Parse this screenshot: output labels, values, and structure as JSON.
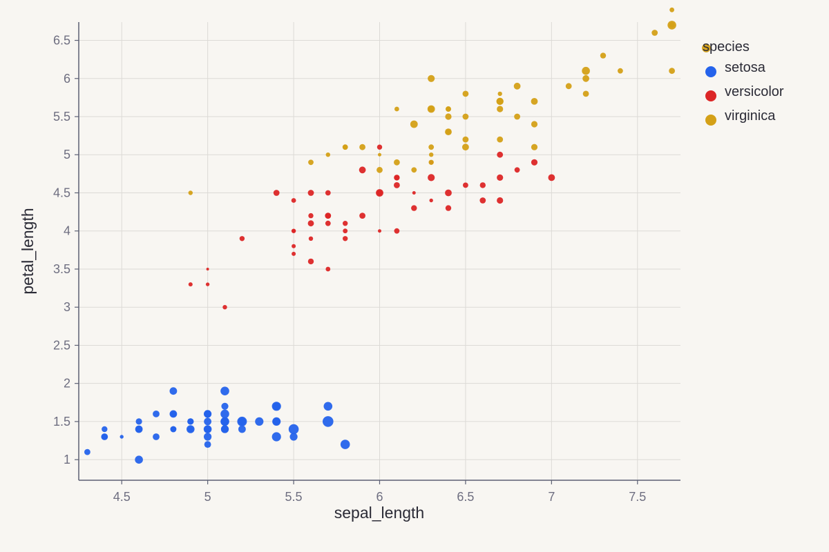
{
  "chart_data": {
    "type": "scatter",
    "title": "",
    "xlabel": "sepal_length",
    "ylabel": "petal_length",
    "xlim": [
      4.25,
      7.75
    ],
    "ylim": [
      0.73,
      6.74
    ],
    "xticks": [
      "4.5",
      "5",
      "5.5",
      "6",
      "6.5",
      "7",
      "7.5"
    ],
    "yticks": [
      "1",
      "1.5",
      "2",
      "2.5",
      "3",
      "3.5",
      "4",
      "4.5",
      "5",
      "5.5",
      "6",
      "6.5"
    ],
    "grid": true,
    "legend": {
      "title": "species",
      "position": "right"
    },
    "size_encoding": "sepal_width",
    "series": [
      {
        "name": "setosa",
        "color": "#2563eb",
        "points": [
          [
            5.1,
            1.4,
            3.5
          ],
          [
            4.9,
            1.4,
            3.0
          ],
          [
            4.7,
            1.3,
            3.2
          ],
          [
            4.6,
            1.5,
            3.1
          ],
          [
            5.0,
            1.4,
            3.6
          ],
          [
            5.4,
            1.7,
            3.9
          ],
          [
            4.6,
            1.4,
            3.4
          ],
          [
            5.0,
            1.5,
            3.4
          ],
          [
            4.4,
            1.4,
            2.9
          ],
          [
            4.9,
            1.5,
            3.1
          ],
          [
            5.4,
            1.5,
            3.7
          ],
          [
            4.8,
            1.6,
            3.4
          ],
          [
            4.8,
            1.4,
            3.0
          ],
          [
            4.3,
            1.1,
            3.0
          ],
          [
            5.8,
            1.2,
            4.0
          ],
          [
            5.7,
            1.5,
            4.4
          ],
          [
            5.4,
            1.3,
            3.9
          ],
          [
            5.1,
            1.4,
            3.5
          ],
          [
            5.7,
            1.7,
            3.8
          ],
          [
            5.1,
            1.5,
            3.8
          ],
          [
            5.4,
            1.7,
            3.4
          ],
          [
            5.1,
            1.5,
            3.7
          ],
          [
            4.6,
            1.0,
            3.6
          ],
          [
            5.1,
            1.7,
            3.3
          ],
          [
            4.8,
            1.9,
            3.4
          ],
          [
            5.0,
            1.6,
            3.0
          ],
          [
            5.0,
            1.6,
            3.4
          ],
          [
            5.2,
            1.5,
            3.5
          ],
          [
            5.2,
            1.4,
            3.4
          ],
          [
            4.7,
            1.6,
            3.2
          ],
          [
            4.8,
            1.6,
            3.1
          ],
          [
            5.4,
            1.5,
            3.4
          ],
          [
            5.2,
            1.5,
            4.1
          ],
          [
            5.5,
            1.4,
            4.2
          ],
          [
            4.9,
            1.5,
            3.1
          ],
          [
            5.0,
            1.2,
            3.2
          ],
          [
            5.5,
            1.3,
            3.5
          ],
          [
            4.9,
            1.4,
            3.6
          ],
          [
            4.4,
            1.3,
            3.0
          ],
          [
            5.1,
            1.5,
            3.4
          ],
          [
            5.0,
            1.3,
            3.5
          ],
          [
            4.5,
            1.3,
            2.3
          ],
          [
            4.4,
            1.3,
            3.2
          ],
          [
            5.0,
            1.6,
            3.5
          ],
          [
            5.1,
            1.9,
            3.8
          ],
          [
            4.8,
            1.4,
            3.0
          ],
          [
            5.1,
            1.6,
            3.8
          ],
          [
            4.6,
            1.4,
            3.2
          ],
          [
            5.3,
            1.5,
            3.7
          ],
          [
            5.0,
            1.4,
            3.3
          ]
        ]
      },
      {
        "name": "versicolor",
        "color": "#dc2626",
        "points": [
          [
            7.0,
            4.7,
            3.2
          ],
          [
            6.4,
            4.5,
            3.2
          ],
          [
            6.9,
            4.9,
            3.1
          ],
          [
            5.5,
            4.0,
            2.3
          ],
          [
            6.5,
            4.6,
            2.8
          ],
          [
            5.7,
            4.5,
            2.8
          ],
          [
            6.3,
            4.7,
            3.3
          ],
          [
            4.9,
            3.3,
            2.4
          ],
          [
            6.6,
            4.6,
            2.9
          ],
          [
            5.2,
            3.9,
            2.7
          ],
          [
            5.0,
            3.5,
            2.0
          ],
          [
            5.9,
            4.2,
            3.0
          ],
          [
            6.0,
            4.0,
            2.2
          ],
          [
            6.1,
            4.7,
            2.9
          ],
          [
            5.6,
            3.6,
            2.9
          ],
          [
            6.7,
            4.4,
            3.1
          ],
          [
            5.6,
            4.5,
            3.0
          ],
          [
            5.8,
            4.1,
            2.7
          ],
          [
            6.2,
            4.5,
            2.2
          ],
          [
            5.6,
            3.9,
            2.5
          ],
          [
            5.9,
            4.8,
            3.2
          ],
          [
            6.1,
            4.0,
            2.8
          ],
          [
            6.3,
            4.9,
            2.5
          ],
          [
            6.1,
            4.7,
            2.8
          ],
          [
            6.4,
            4.3,
            2.9
          ],
          [
            6.6,
            4.4,
            3.0
          ],
          [
            6.8,
            4.8,
            2.8
          ],
          [
            6.7,
            5.0,
            3.0
          ],
          [
            6.0,
            4.5,
            2.9
          ],
          [
            5.7,
            3.5,
            2.6
          ],
          [
            5.5,
            3.8,
            2.4
          ],
          [
            5.5,
            3.7,
            2.4
          ],
          [
            5.8,
            3.9,
            2.7
          ],
          [
            6.0,
            5.1,
            2.7
          ],
          [
            5.4,
            4.5,
            3.0
          ],
          [
            6.0,
            4.5,
            3.4
          ],
          [
            6.7,
            4.7,
            3.1
          ],
          [
            6.3,
            4.4,
            2.3
          ],
          [
            5.6,
            4.1,
            3.0
          ],
          [
            5.5,
            4.0,
            2.5
          ],
          [
            5.5,
            4.4,
            2.6
          ],
          [
            6.1,
            4.6,
            3.0
          ],
          [
            5.8,
            4.0,
            2.6
          ],
          [
            5.0,
            3.3,
            2.3
          ],
          [
            5.6,
            4.2,
            2.7
          ],
          [
            5.7,
            4.2,
            3.0
          ],
          [
            5.7,
            4.2,
            2.9
          ],
          [
            6.2,
            4.3,
            2.9
          ],
          [
            5.1,
            3.0,
            2.5
          ],
          [
            5.7,
            4.1,
            2.8
          ]
        ]
      },
      {
        "name": "virginica",
        "color": "#d4a017",
        "points": [
          [
            6.3,
            6.0,
            3.3
          ],
          [
            5.8,
            5.1,
            2.7
          ],
          [
            7.1,
            5.9,
            3.0
          ],
          [
            6.3,
            5.6,
            2.9
          ],
          [
            6.5,
            5.8,
            3.0
          ],
          [
            7.6,
            6.6,
            3.0
          ],
          [
            4.9,
            4.5,
            2.5
          ],
          [
            7.3,
            6.3,
            2.9
          ],
          [
            6.7,
            5.8,
            2.5
          ],
          [
            7.2,
            6.1,
            3.6
          ],
          [
            6.5,
            5.1,
            3.2
          ],
          [
            6.4,
            5.3,
            2.7
          ],
          [
            6.8,
            5.5,
            3.0
          ],
          [
            5.7,
            5.0,
            2.5
          ],
          [
            5.8,
            5.1,
            2.8
          ],
          [
            6.4,
            5.3,
            3.2
          ],
          [
            6.5,
            5.5,
            3.0
          ],
          [
            7.7,
            6.7,
            3.8
          ],
          [
            7.7,
            6.9,
            2.6
          ],
          [
            6.0,
            5.0,
            2.2
          ],
          [
            6.9,
            5.7,
            3.2
          ],
          [
            5.6,
            4.9,
            2.8
          ],
          [
            7.7,
            6.7,
            2.8
          ],
          [
            6.3,
            4.9,
            2.7
          ],
          [
            6.7,
            5.7,
            3.3
          ],
          [
            7.2,
            6.0,
            3.2
          ],
          [
            6.2,
            4.8,
            2.8
          ],
          [
            6.1,
            4.9,
            3.0
          ],
          [
            6.4,
            5.6,
            2.8
          ],
          [
            7.2,
            5.8,
            3.0
          ],
          [
            7.4,
            6.1,
            2.8
          ],
          [
            7.9,
            6.4,
            3.8
          ],
          [
            6.4,
            5.6,
            2.8
          ],
          [
            6.3,
            5.1,
            2.8
          ],
          [
            6.1,
            5.6,
            2.6
          ],
          [
            7.7,
            6.1,
            3.0
          ],
          [
            6.3,
            5.6,
            3.4
          ],
          [
            6.4,
            5.5,
            3.1
          ],
          [
            6.0,
            4.8,
            3.0
          ],
          [
            6.9,
            5.4,
            3.1
          ],
          [
            6.7,
            5.6,
            3.1
          ],
          [
            6.9,
            5.1,
            3.1
          ],
          [
            5.8,
            5.1,
            2.7
          ],
          [
            6.8,
            5.9,
            3.2
          ],
          [
            6.7,
            5.7,
            3.3
          ],
          [
            6.7,
            5.2,
            3.0
          ],
          [
            6.3,
            5.0,
            2.5
          ],
          [
            6.5,
            5.2,
            3.0
          ],
          [
            6.2,
            5.4,
            3.4
          ],
          [
            5.9,
            5.1,
            3.0
          ]
        ]
      }
    ]
  }
}
